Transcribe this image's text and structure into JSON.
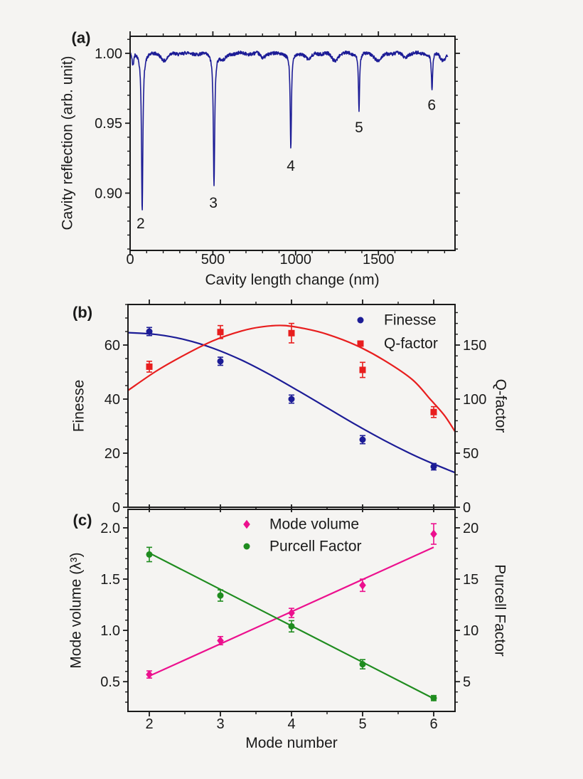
{
  "figure": {
    "background_color": "#f5f4f2",
    "text_color": "#1a1a1a",
    "panel_labels": {
      "a": "(a)",
      "b": "(b)",
      "c": "(c)"
    }
  },
  "chart_data": [
    {
      "panel": "a",
      "type": "line",
      "xlabel": "Cavity length change (nm)",
      "ylabel": "Cavity reflection (arb. unit)",
      "xlim": [
        0,
        1963
      ],
      "ylim": [
        0.859,
        1.0122
      ],
      "x_major_ticks": [
        0,
        500,
        1000,
        1500
      ],
      "x_minor_step": 100,
      "y_major_ticks": [
        0.9,
        0.95,
        1.0
      ],
      "y_minor_step": 0.01,
      "y_tick_decimals": 2,
      "line_color": "#1c1c96",
      "baseline_reflection": 1.0,
      "noise_amplitude": 0.0012,
      "trace_range_nm": [
        0,
        1920
      ],
      "resonance_dips": [
        {
          "mode": 2,
          "position_nm": 73,
          "min_reflection": 0.888,
          "width_nm": 5
        },
        {
          "mode": 3,
          "position_nm": 507,
          "min_reflection": 0.906,
          "width_nm": 5
        },
        {
          "mode": 4,
          "position_nm": 971,
          "min_reflection": 0.931,
          "width_nm": 4.5
        },
        {
          "mode": 5,
          "position_nm": 1383,
          "min_reflection": 0.9585,
          "width_nm": 4
        },
        {
          "mode": 6,
          "position_nm": 1824,
          "min_reflection": 0.9735,
          "width_nm": 4.5
        }
      ],
      "dip_labels": [
        {
          "text": "2",
          "x": 64,
          "y": 0.878
        },
        {
          "text": "3",
          "x": 503,
          "y": 0.8928
        },
        {
          "text": "4",
          "x": 971,
          "y": 0.9192
        },
        {
          "text": "5",
          "x": 1383,
          "y": 0.9467
        },
        {
          "text": "6",
          "x": 1822,
          "y": 0.9629
        }
      ],
      "secondary_ripples": [
        [
          17,
          0.008,
          5
        ],
        [
          210,
          0.005,
          18
        ],
        [
          560,
          0.0045,
          18
        ],
        [
          800,
          0.003,
          14
        ],
        [
          1080,
          0.0045,
          16
        ],
        [
          1235,
          0.005,
          18
        ],
        [
          1500,
          0.0055,
          20
        ],
        [
          1660,
          0.003,
          14
        ],
        [
          1890,
          0.0045,
          16
        ]
      ]
    },
    {
      "panel": "b",
      "type": "scatter",
      "x_values": [
        2,
        3,
        4,
        5,
        6
      ],
      "xlim": [
        1.7,
        6.3
      ],
      "x_major_ticks": [
        2,
        3,
        4,
        5,
        6
      ],
      "x_minor_step": 0.5,
      "show_x_tick_labels": false,
      "left_axis": {
        "label": "Finesse",
        "lim": [
          0,
          75
        ],
        "major_ticks": [
          0,
          20,
          40,
          60
        ],
        "minor_step": 5,
        "decimals": 0
      },
      "right_axis": {
        "label": "Q-factor",
        "lim": [
          0,
          187.5
        ],
        "major_ticks": [
          0,
          50,
          100,
          150
        ],
        "minor_step": 10,
        "decimals": 0
      },
      "legend_position": "inside-top-right",
      "series": [
        {
          "name": "Finesse",
          "axis": "left",
          "color": "#1c1c96",
          "marker": "circle",
          "values": [
            65,
            54,
            40,
            25,
            15
          ],
          "errors": [
            1.5,
            1.5,
            1.5,
            1.5,
            1.2
          ],
          "fit_curve": [
            [
              1.7,
              64.6
            ],
            [
              2.1,
              63.9
            ],
            [
              2.5,
              62.0
            ],
            [
              2.9,
              58.8
            ],
            [
              3.3,
              54.4
            ],
            [
              3.7,
              49.0
            ],
            [
              4.1,
              43.0
            ],
            [
              4.5,
              36.8
            ],
            [
              4.9,
              30.6
            ],
            [
              5.3,
              24.8
            ],
            [
              5.7,
              19.5
            ],
            [
              6.0,
              16.0
            ],
            [
              6.3,
              12.8
            ]
          ]
        },
        {
          "name": "Q-factor",
          "axis": "right",
          "color": "#e81e1e",
          "marker": "square",
          "values": [
            130,
            162,
            161,
            127,
            88
          ],
          "errors": [
            5,
            6,
            9,
            7,
            5
          ],
          "fit_curve": [
            [
              1.7,
              108
            ],
            [
              2.1,
              126
            ],
            [
              2.5,
              141
            ],
            [
              2.9,
              154
            ],
            [
              3.3,
              163
            ],
            [
              3.6,
              167
            ],
            [
              3.9,
              168
            ],
            [
              4.2,
              165
            ],
            [
              4.5,
              160
            ],
            [
              4.9,
              150
            ],
            [
              5.3,
              136
            ],
            [
              5.7,
              118
            ],
            [
              5.95,
              100
            ],
            [
              6.15,
              85
            ],
            [
              6.3,
              70
            ]
          ]
        }
      ]
    },
    {
      "panel": "c",
      "type": "scatter",
      "xlabel": "Mode number",
      "x_values": [
        2,
        3,
        4,
        5,
        6
      ],
      "xlim": [
        1.7,
        6.3
      ],
      "x_major_ticks": [
        2,
        3,
        4,
        5,
        6
      ],
      "x_minor_step": 0.5,
      "show_x_tick_labels": true,
      "left_axis": {
        "label": "Mode volume (λ³)",
        "lim": [
          0.21,
          2.18
        ],
        "major_ticks": [
          0.5,
          1.0,
          1.5,
          2.0
        ],
        "minor_step": 0.1,
        "decimals": 1
      },
      "right_axis": {
        "label": "Purcell Factor",
        "lim": [
          2.1,
          21.8
        ],
        "major_ticks": [
          5,
          10,
          15,
          20
        ],
        "minor_step": 1,
        "decimals": 0
      },
      "legend_position": "inside-top-center",
      "series": [
        {
          "name": "Mode volume",
          "axis": "left",
          "color": "#ec108e",
          "marker": "diamond",
          "values": [
            0.57,
            0.9,
            1.17,
            1.44,
            1.94
          ],
          "errors": [
            0.035,
            0.04,
            0.045,
            0.06,
            0.1
          ],
          "fit_curve": [
            [
              2,
              0.555
            ],
            [
              6,
              1.81
            ]
          ]
        },
        {
          "name": "Purcell Factor",
          "axis": "right",
          "color": "#1f8c1f",
          "marker": "circle",
          "values": [
            17.4,
            13.4,
            10.4,
            6.7,
            3.4
          ],
          "errors": [
            0.7,
            0.55,
            0.55,
            0.45,
            0.25
          ],
          "fit_curve": [
            [
              2,
              17.55
            ],
            [
              6,
              3.35
            ]
          ]
        }
      ]
    }
  ]
}
